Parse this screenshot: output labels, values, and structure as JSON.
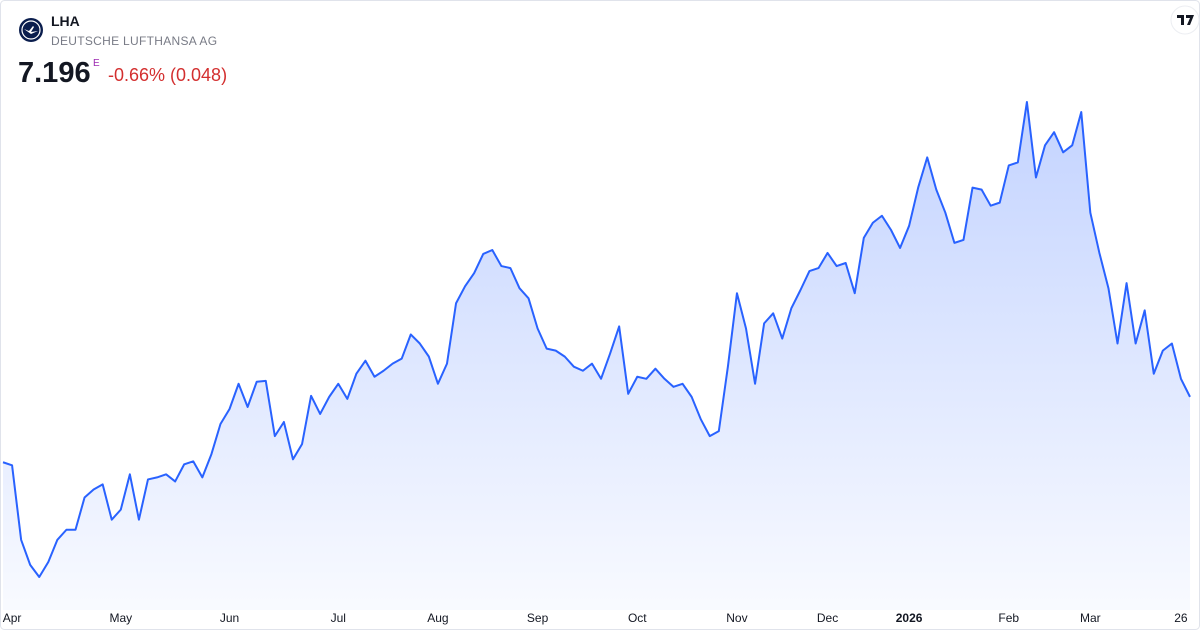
{
  "header": {
    "symbol": "LHA",
    "company": "DEUTSCHE LUFTHANSA AG",
    "price": "7.196",
    "marker": "E",
    "change": "-0.66% (0.048)"
  },
  "chart_data": {
    "type": "area",
    "color": "#2962ff",
    "categories": [
      null,
      "Apr",
      null,
      null,
      null,
      null,
      null,
      null,
      null,
      null,
      null,
      null,
      null,
      "May",
      null,
      null,
      null,
      null,
      null,
      null,
      null,
      null,
      null,
      null,
      null,
      "Jun",
      null,
      null,
      null,
      null,
      null,
      null,
      null,
      null,
      null,
      null,
      null,
      "Jul",
      null,
      null,
      null,
      null,
      null,
      null,
      null,
      null,
      null,
      null,
      "Aug",
      null,
      null,
      null,
      null,
      null,
      null,
      null,
      null,
      null,
      null,
      "Sep",
      null,
      null,
      null,
      null,
      null,
      null,
      null,
      null,
      null,
      null,
      "Oct",
      null,
      null,
      null,
      null,
      null,
      null,
      null,
      null,
      null,
      null,
      "Nov",
      null,
      null,
      null,
      null,
      null,
      null,
      null,
      null,
      null,
      "Dec",
      null,
      null,
      null,
      null,
      null,
      null,
      null,
      null,
      "2026",
      null,
      null,
      null,
      null,
      null,
      null,
      null,
      null,
      null,
      null,
      "Feb",
      null,
      null,
      null,
      null,
      null,
      null,
      null,
      null,
      "Mar",
      null,
      null,
      null,
      null,
      null,
      null,
      null,
      null,
      null,
      "26",
      null
    ],
    "values": [
      6.618,
      6.591,
      5.932,
      5.71,
      5.603,
      5.736,
      5.932,
      6.021,
      6.021,
      6.306,
      6.377,
      6.422,
      6.11,
      6.199,
      6.511,
      6.11,
      6.466,
      6.484,
      6.511,
      6.448,
      6.6,
      6.626,
      6.484,
      6.689,
      6.956,
      7.089,
      7.312,
      7.107,
      7.33,
      7.338,
      6.849,
      6.974,
      6.644,
      6.778,
      7.205,
      7.045,
      7.196,
      7.312,
      7.178,
      7.401,
      7.516,
      7.374,
      7.427,
      7.49,
      7.534,
      7.748,
      7.668,
      7.552,
      7.312,
      7.49,
      8.024,
      8.175,
      8.291,
      8.46,
      8.495,
      8.353,
      8.335,
      8.157,
      8.068,
      7.801,
      7.623,
      7.605,
      7.552,
      7.463,
      7.427,
      7.49,
      7.356,
      7.579,
      7.819,
      7.223,
      7.374,
      7.356,
      7.445,
      7.356,
      7.285,
      7.312,
      7.196,
      7.0,
      6.849,
      6.893,
      7.463,
      8.113,
      7.801,
      7.312,
      7.846,
      7.935,
      7.712,
      7.979,
      8.139,
      8.309,
      8.335,
      8.469,
      8.353,
      8.38,
      8.113,
      8.602,
      8.736,
      8.798,
      8.673,
      8.513,
      8.709,
      9.047,
      9.314,
      9.029,
      8.825,
      8.558,
      8.584,
      9.047,
      9.029,
      8.887,
      8.914,
      9.243,
      9.27,
      9.804,
      9.136,
      9.421,
      9.537,
      9.359,
      9.421,
      9.715,
      8.825,
      8.469,
      8.157,
      7.668,
      8.202,
      7.668,
      7.961,
      7.401,
      7.605,
      7.668,
      7.356,
      7.196
    ]
  }
}
